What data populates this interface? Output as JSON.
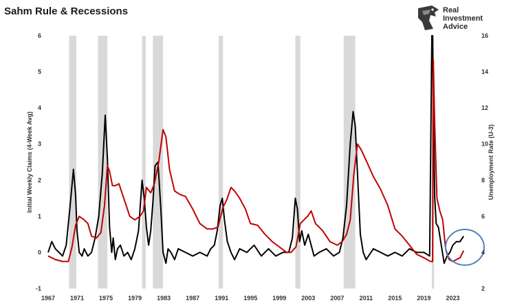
{
  "title": "Sahm Rule & Recessions",
  "logo": {
    "line1": "Real",
    "line2": "Investment",
    "line3": "Advice",
    "icon": "eagle-head-icon"
  },
  "colors": {
    "claims": "#000000",
    "unemployment": "#c00000",
    "recession": "#d9d9d9",
    "highlight": "#4f81bd"
  },
  "chart_data": {
    "type": "line",
    "ylabel_left": "Initial Weekly Claims (4-Week Avg)",
    "ylabel_right": "Unemployment Rate (U-3)",
    "xlim": [
      1967,
      2026
    ],
    "ylim_left": [
      -1,
      6
    ],
    "ylim_right": [
      2,
      16
    ],
    "xticks": [
      1967,
      1971,
      1975,
      1979,
      1983,
      1987,
      1991,
      1995,
      1999,
      2003,
      2007,
      2011,
      2015,
      2019,
      2023
    ],
    "yticks_left": [
      -1,
      0,
      1,
      2,
      3,
      4,
      5,
      6
    ],
    "yticks_right": [
      2,
      4,
      6,
      8,
      10,
      12,
      14,
      16
    ],
    "recessions": [
      [
        1969.9,
        1970.9
      ],
      [
        1973.9,
        1975.2
      ],
      [
        1980.0,
        1980.5
      ],
      [
        1981.5,
        1982.9
      ],
      [
        1990.6,
        1991.2
      ],
      [
        2001.2,
        2001.9
      ],
      [
        2007.9,
        2009.5
      ],
      [
        2020.1,
        2020.4
      ]
    ],
    "series": [
      {
        "axis": "left",
        "x": [
          1967.0,
          1967.5,
          1968.0,
          1968.5,
          1969.0,
          1969.5,
          1970.0,
          1970.5,
          1970.8,
          1971.0,
          1971.3,
          1971.7,
          1972.0,
          1972.5,
          1973.0,
          1973.5,
          1974.0,
          1974.5,
          1974.9,
          1975.2,
          1975.5,
          1975.8,
          1976.0,
          1976.3,
          1976.6,
          1977.0,
          1977.5,
          1978.0,
          1978.5,
          1979.0,
          1979.5,
          1980.0,
          1980.3,
          1980.6,
          1980.9,
          1981.2,
          1981.5,
          1981.8,
          1982.2,
          1982.6,
          1982.9,
          1983.3,
          1983.6,
          1984.0,
          1984.5,
          1985.0,
          1986.0,
          1987.0,
          1988.0,
          1989.0,
          1989.5,
          1990.0,
          1990.4,
          1990.8,
          1991.1,
          1991.4,
          1991.8,
          1992.3,
          1992.8,
          1993.5,
          1994.5,
          1995.5,
          1996.5,
          1997.5,
          1998.5,
          1999.5,
          2000.3,
          2000.8,
          2001.2,
          2001.5,
          2001.8,
          2002.1,
          2002.5,
          2003.0,
          2003.4,
          2003.8,
          2004.5,
          2005.5,
          2006.5,
          2007.3,
          2007.8,
          2008.3,
          2008.8,
          2009.2,
          2009.5,
          2009.8,
          2010.2,
          2010.6,
          2011.0,
          2012.0,
          2013.0,
          2014.0,
          2015.0,
          2016.0,
          2017.0,
          2018.0,
          2019.0,
          2019.8,
          2020.1,
          2020.2,
          2020.3,
          2020.5,
          2020.7,
          2021.0,
          2021.4,
          2021.8,
          2022.2,
          2022.6,
          2023.0,
          2023.5,
          2024.0,
          2024.5
        ],
        "values": [
          0.0,
          0.3,
          0.1,
          0.0,
          -0.1,
          0.2,
          1.2,
          2.3,
          1.6,
          0.6,
          0.0,
          -0.1,
          0.1,
          -0.1,
          0.0,
          0.4,
          1.0,
          2.2,
          3.8,
          2.6,
          0.7,
          0.0,
          0.4,
          -0.2,
          0.1,
          0.2,
          -0.1,
          0.0,
          -0.2,
          0.1,
          0.6,
          2.0,
          1.5,
          0.7,
          0.2,
          0.6,
          1.4,
          2.4,
          2.5,
          1.2,
          0.0,
          -0.3,
          0.1,
          0.0,
          -0.2,
          0.1,
          0.0,
          -0.1,
          0.0,
          -0.1,
          0.1,
          0.2,
          0.6,
          1.3,
          1.5,
          0.9,
          0.3,
          0.0,
          -0.2,
          0.1,
          0.0,
          0.2,
          -0.1,
          0.1,
          -0.1,
          0.0,
          0.0,
          0.4,
          1.5,
          1.2,
          0.3,
          0.6,
          0.2,
          0.5,
          0.2,
          -0.1,
          0.0,
          0.1,
          -0.1,
          0.0,
          0.4,
          1.3,
          3.0,
          3.9,
          3.5,
          2.2,
          0.5,
          0.0,
          -0.2,
          0.1,
          0.0,
          -0.1,
          0.0,
          -0.1,
          0.1,
          0.0,
          0.0,
          -0.1,
          6.0,
          6.0,
          4.0,
          1.5,
          0.8,
          0.7,
          0.2,
          -0.3,
          -0.1,
          0.0,
          0.2,
          0.3,
          0.3,
          0.45
        ]
      },
      {
        "axis": "right",
        "x": [
          1967.0,
          1968.0,
          1969.0,
          1969.8,
          1970.3,
          1970.8,
          1971.3,
          1972.0,
          1972.5,
          1973.0,
          1973.7,
          1974.3,
          1974.8,
          1975.2,
          1975.5,
          1975.9,
          1976.3,
          1976.8,
          1977.3,
          1977.8,
          1978.3,
          1979.0,
          1979.7,
          1980.2,
          1980.6,
          1981.2,
          1981.7,
          1982.3,
          1982.9,
          1983.3,
          1983.8,
          1984.5,
          1985.3,
          1986.0,
          1987.0,
          1988.0,
          1989.0,
          1989.8,
          1990.5,
          1991.2,
          1991.7,
          1992.3,
          1992.8,
          1993.5,
          1994.3,
          1995.0,
          1996.0,
          1997.0,
          1998.0,
          1999.0,
          2000.0,
          2000.6,
          2001.3,
          2001.9,
          2002.4,
          2002.9,
          2003.4,
          2004.0,
          2005.0,
          2006.0,
          2007.0,
          2007.7,
          2008.3,
          2008.8,
          2009.3,
          2009.8,
          2010.3,
          2011.0,
          2012.0,
          2013.0,
          2014.0,
          2015.0,
          2016.0,
          2017.0,
          2018.0,
          2019.0,
          2019.9,
          2020.2,
          2020.3,
          2020.5,
          2020.8,
          2021.2,
          2021.6,
          2022.0,
          2022.5,
          2023.0,
          2023.5,
          2024.0,
          2024.5
        ],
        "values": [
          3.8,
          3.6,
          3.5,
          3.5,
          4.3,
          5.5,
          6.0,
          5.8,
          5.6,
          4.9,
          4.8,
          5.1,
          6.6,
          8.8,
          8.5,
          7.7,
          7.7,
          7.8,
          7.2,
          6.6,
          6.0,
          5.8,
          6.0,
          6.3,
          7.6,
          7.3,
          7.8,
          9.0,
          10.8,
          10.4,
          8.6,
          7.4,
          7.2,
          7.1,
          6.4,
          5.6,
          5.3,
          5.3,
          5.4,
          6.5,
          6.9,
          7.6,
          7.4,
          7.0,
          6.4,
          5.6,
          5.5,
          5.0,
          4.6,
          4.3,
          4.0,
          4.0,
          4.3,
          5.6,
          5.8,
          6.0,
          6.3,
          5.6,
          5.2,
          4.6,
          4.4,
          4.6,
          5.0,
          5.8,
          8.3,
          10.0,
          9.7,
          9.1,
          8.2,
          7.5,
          6.6,
          5.3,
          4.9,
          4.4,
          3.9,
          3.7,
          3.5,
          3.5,
          14.7,
          11.0,
          7.0,
          6.3,
          5.8,
          4.2,
          3.6,
          3.5,
          3.6,
          3.7,
          4.1
        ]
      }
    ]
  }
}
